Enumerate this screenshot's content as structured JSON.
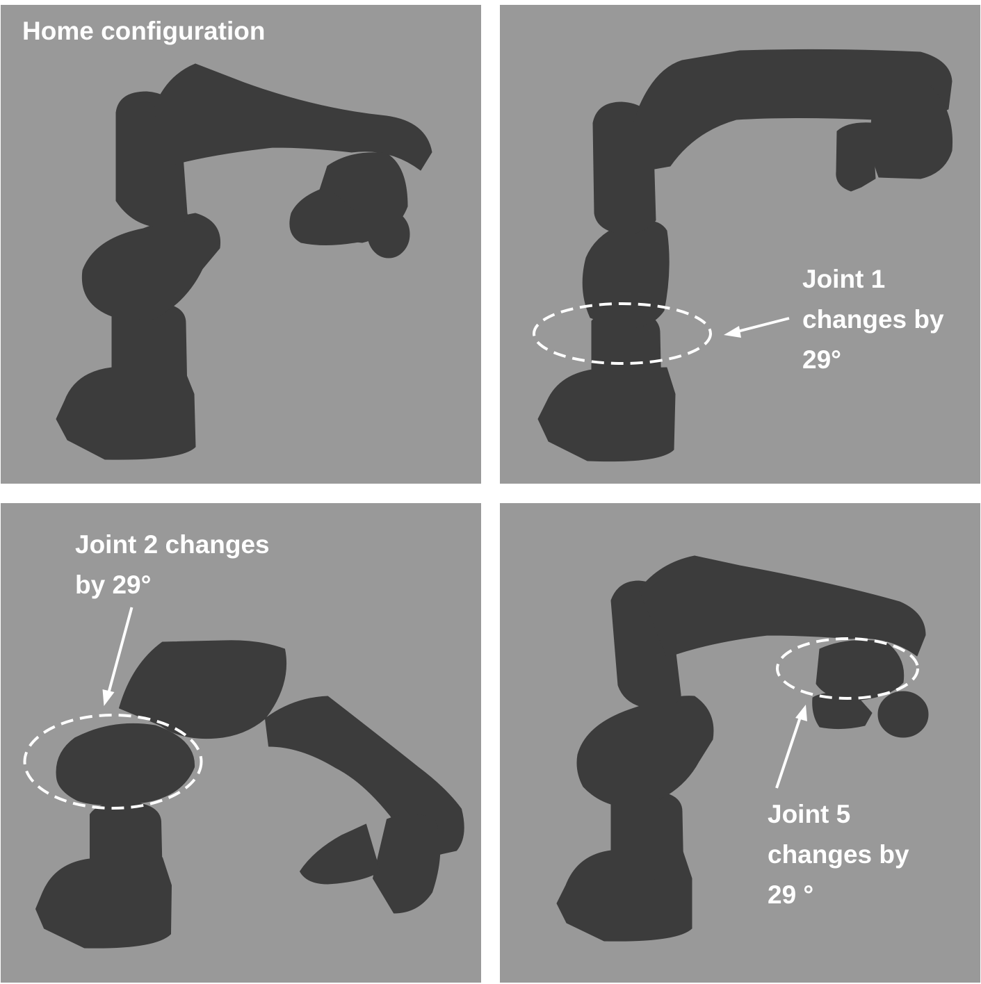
{
  "colors": {
    "panel_background": "#999999",
    "robot_body": "#3c3c3c",
    "annotation": "#ffffff"
  },
  "panels": [
    {
      "id": "home",
      "caption_lines": [
        "Home configuration"
      ]
    },
    {
      "id": "joint-1",
      "caption_lines": [
        "Joint 1",
        "changes by",
        "29°"
      ]
    },
    {
      "id": "joint-2",
      "caption_lines": [
        "Joint 2 changes",
        "by 29°"
      ]
    },
    {
      "id": "joint-5",
      "caption_lines": [
        "Joint 5",
        "changes by",
        "29 °"
      ]
    }
  ]
}
